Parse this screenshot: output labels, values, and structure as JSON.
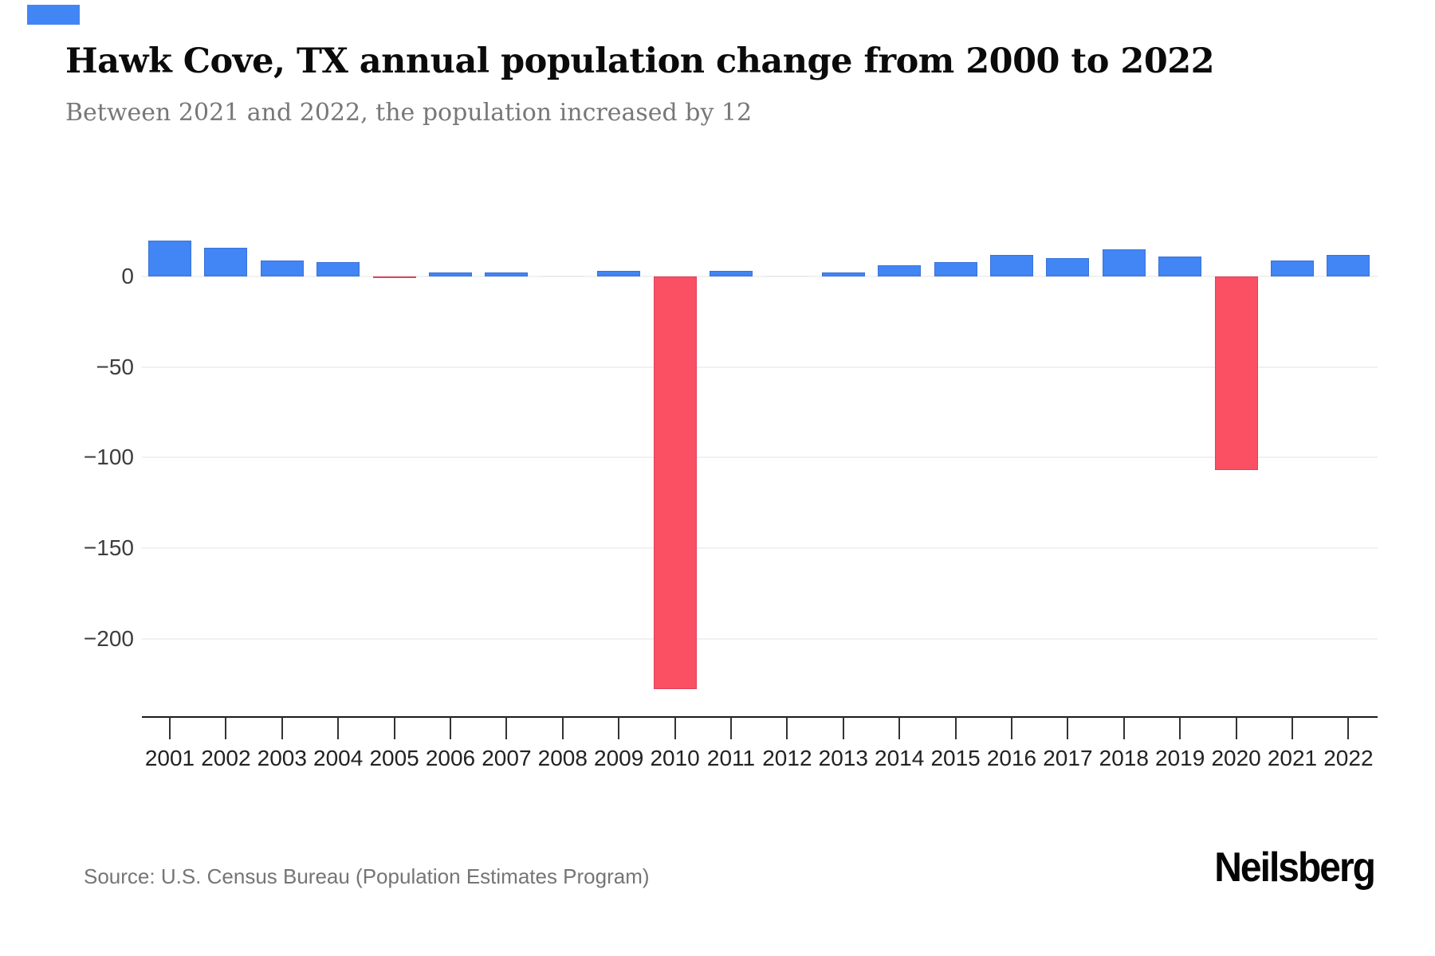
{
  "page": {
    "title": "Hawk Cove, TX annual population change from 2000 to 2022",
    "subtitle": "Between 2021 and 2022, the population increased by 12",
    "source": "Source: U.S. Census Bureau (Population Estimates Program)",
    "brand": "Neilsberg"
  },
  "colors": {
    "positive_bar": "#4285f4",
    "negative_bar": "#fb4f63",
    "zero_bar": "#ebebeb",
    "gridline": "#f1f1f1",
    "axis_line": "#1a1a1a",
    "tick_mark": "#333333",
    "x_label": "#222222",
    "y_label": "#3d3d3d",
    "corner_mark": "#4285f4"
  },
  "chart_data": {
    "type": "bar",
    "title": "Hawk Cove, TX annual population change from 2000 to 2022",
    "subtitle": "Between 2021 and 2022, the population increased by 12",
    "categories": [
      "2001",
      "2002",
      "2003",
      "2004",
      "2005",
      "2006",
      "2007",
      "2008",
      "2009",
      "2010",
      "2011",
      "2012",
      "2013",
      "2014",
      "2015",
      "2016",
      "2017",
      "2018",
      "2019",
      "2020",
      "2021",
      "2022"
    ],
    "values": [
      20,
      16,
      9,
      8,
      -1,
      2,
      2,
      0,
      3,
      -228,
      3,
      0,
      2,
      6,
      8,
      12,
      10,
      15,
      11,
      -107,
      9,
      12
    ],
    "xlabel": "",
    "ylabel": "",
    "yticks": [
      {
        "value": 0,
        "label": "0"
      },
      {
        "value": -50,
        "label": "−50"
      },
      {
        "value": -100,
        "label": "−100"
      },
      {
        "value": -150,
        "label": "−150"
      },
      {
        "value": -200,
        "label": "−200"
      }
    ],
    "ylim": [
      -243,
      47
    ],
    "grid": true,
    "legend": false
  }
}
